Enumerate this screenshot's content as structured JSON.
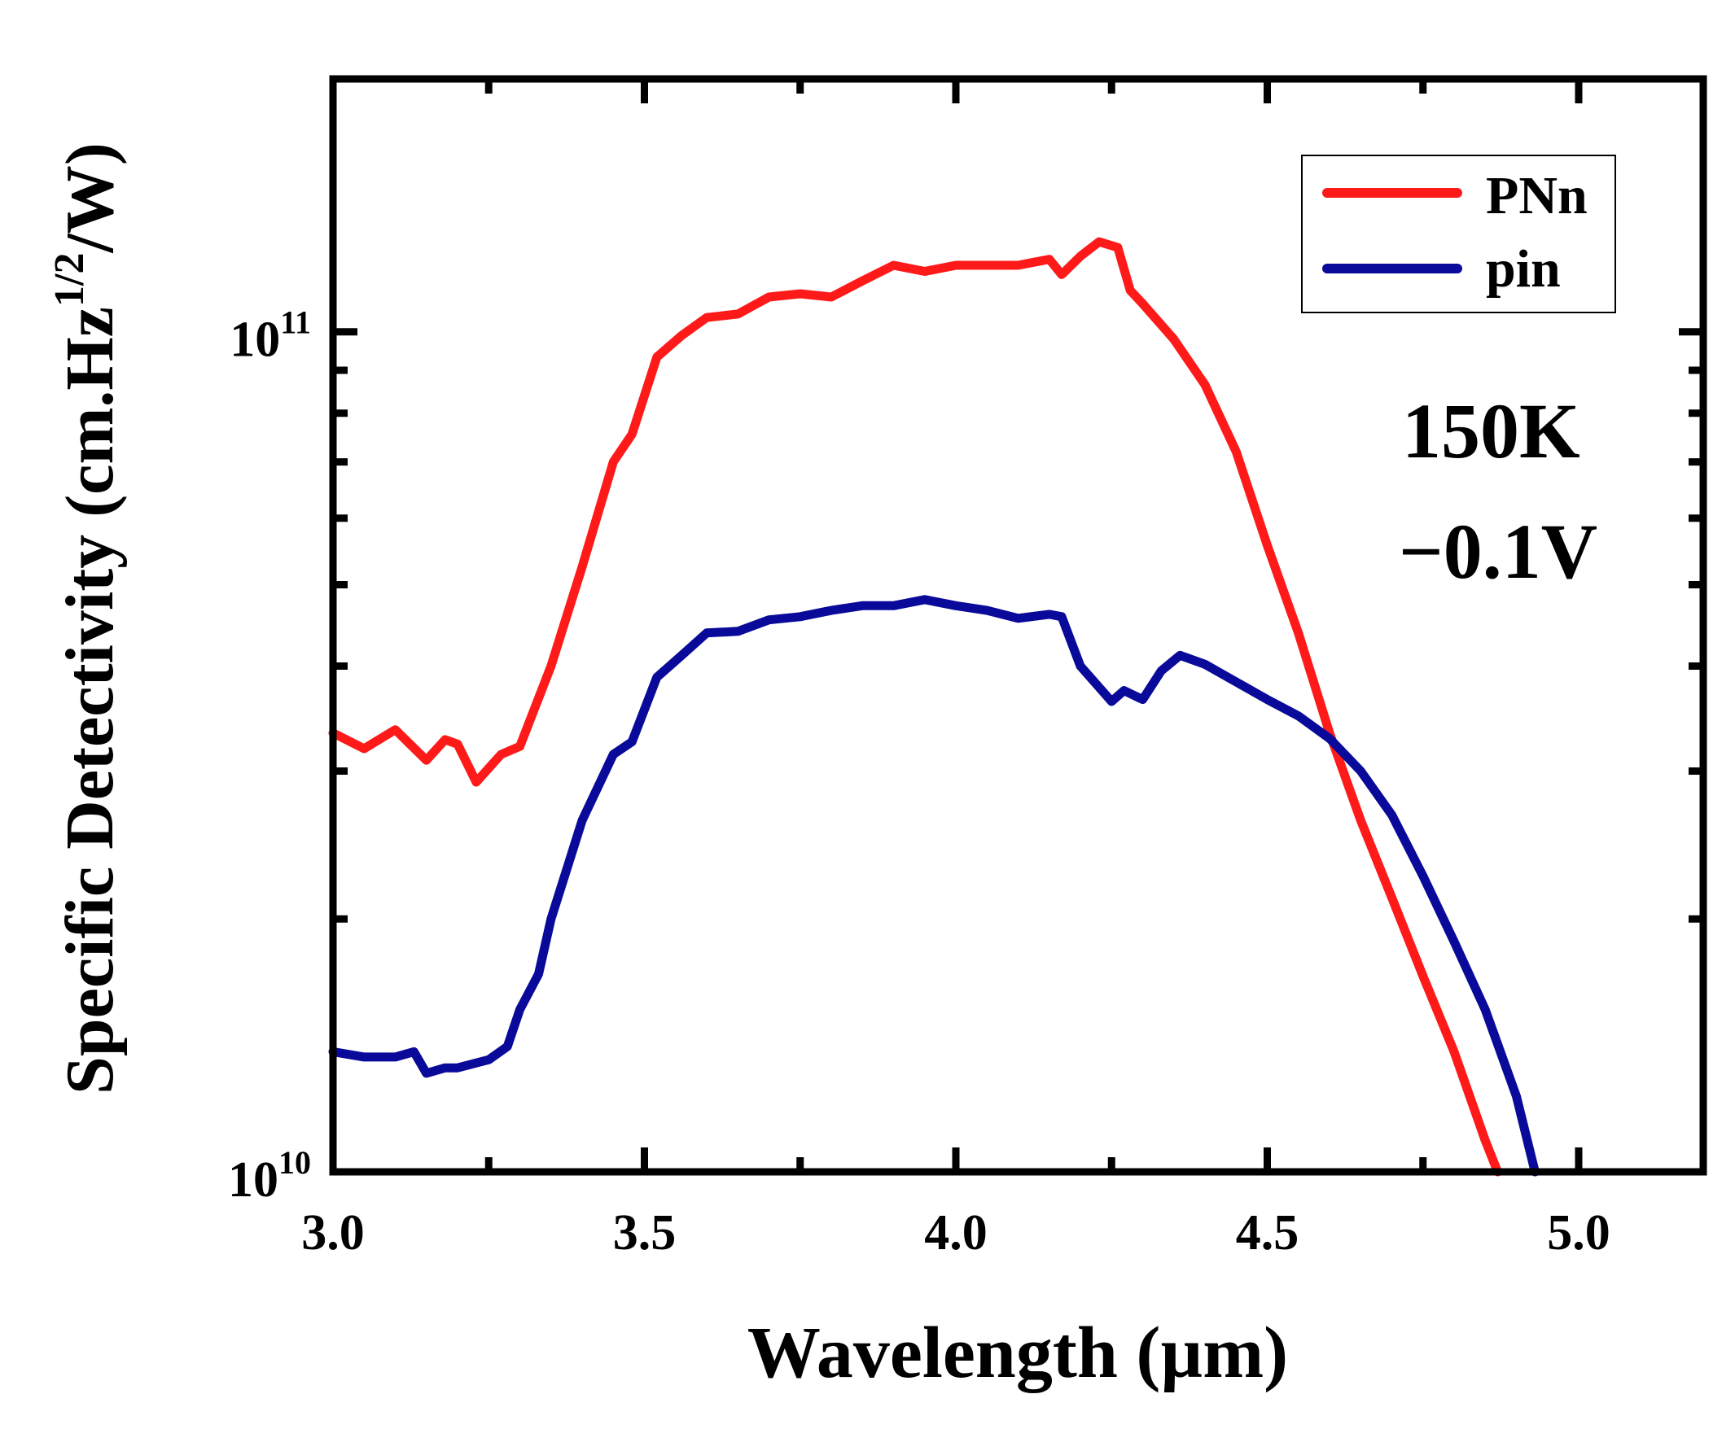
{
  "chart_data": {
    "type": "line",
    "title": "",
    "xlabel": "Wavelength (µm)",
    "ylabel_main": "Specific Detectivity (cm.Hz",
    "ylabel_sup": "1/2",
    "ylabel_tail": "/W)",
    "xlim": [
      3.0,
      5.2
    ],
    "ylim": [
      10000000000.0,
      200000000000.0
    ],
    "yscale": "log",
    "xticks": [
      3.0,
      3.5,
      4.0,
      4.5,
      5.0
    ],
    "xtick_labels": [
      "3.0",
      "3.5",
      "4.0",
      "4.5",
      "5.0"
    ],
    "yticks": [
      {
        "value": 10000000000.0,
        "base": "10",
        "exp": "10"
      },
      {
        "value": 100000000000.0,
        "base": "10",
        "exp": "11"
      }
    ],
    "legend_position": "top-right",
    "annotations": [
      "150K",
      "−0.1V"
    ],
    "series": [
      {
        "name": "PNn",
        "color": "#ff1a1a",
        "x": [
          3.0,
          3.05,
          3.1,
          3.15,
          3.18,
          3.2,
          3.23,
          3.27,
          3.3,
          3.35,
          3.4,
          3.45,
          3.48,
          3.52,
          3.56,
          3.6,
          3.65,
          3.7,
          3.75,
          3.8,
          3.85,
          3.9,
          3.95,
          4.0,
          4.05,
          4.1,
          4.15,
          4.17,
          4.2,
          4.23,
          4.26,
          4.28,
          4.3,
          4.35,
          4.4,
          4.45,
          4.5,
          4.55,
          4.6,
          4.65,
          4.7,
          4.75,
          4.8,
          4.85,
          4.87
        ],
        "y": [
          33300000000.0,
          31900000000.0,
          33600000000.0,
          30900000000.0,
          32700000000.0,
          32300000000.0,
          29100000000.0,
          31400000000.0,
          32100000000.0,
          40000000000.0,
          52500000000.0,
          70000000000.0,
          75500000000.0,
          93300000000.0,
          99000000000.0,
          104000000000.0,
          105000000000.0,
          110000000000.0,
          111000000000.0,
          110000000000.0,
          115000000000.0,
          120000000000.0,
          118000000000.0,
          120000000000.0,
          120000000000.0,
          120000000000.0,
          122000000000.0,
          117000000000.0,
          123000000000.0,
          128000000000.0,
          126000000000.0,
          112000000000.0,
          108000000000.0,
          98000000000.0,
          86500000000.0,
          72000000000.0,
          55700000000.0,
          43800000000.0,
          33300000000.0,
          26200000000.0,
          21200000000.0,
          17100000000.0,
          13900000000.0,
          10900000000.0,
          10000000000.0
        ]
      },
      {
        "name": "pin",
        "color": "#0a0a9a",
        "x": [
          3.0,
          3.05,
          3.1,
          3.13,
          3.15,
          3.18,
          3.2,
          3.25,
          3.28,
          3.3,
          3.33,
          3.35,
          3.4,
          3.45,
          3.48,
          3.52,
          3.56,
          3.6,
          3.65,
          3.7,
          3.75,
          3.8,
          3.85,
          3.9,
          3.95,
          4.0,
          4.05,
          4.1,
          4.15,
          4.17,
          4.2,
          4.25,
          4.27,
          4.3,
          4.33,
          4.36,
          4.4,
          4.45,
          4.5,
          4.55,
          4.6,
          4.65,
          4.7,
          4.75,
          4.8,
          4.85,
          4.9,
          4.93
        ],
        "y": [
          13900000000.0,
          13700000000.0,
          13700000000.0,
          13900000000.0,
          13100000000.0,
          13300000000.0,
          13300000000.0,
          13600000000.0,
          14100000000.0,
          15600000000.0,
          17200000000.0,
          20000000000.0,
          26200000000.0,
          31400000000.0,
          32500000000.0,
          38800000000.0,
          41200000000.0,
          43800000000.0,
          44000000000.0,
          45400000000.0,
          45800000000.0,
          46600000000.0,
          47200000000.0,
          47200000000.0,
          48000000000.0,
          47200000000.0,
          46600000000.0,
          45600000000.0,
          46100000000.0,
          45800000000.0,
          40000000000.0,
          36300000000.0,
          37400000000.0,
          36500000000.0,
          39500000000.0,
          41200000000.0,
          40200000000.0,
          38300000000.0,
          36500000000.0,
          34900000000.0,
          32800000000.0,
          30000000000.0,
          26600000000.0,
          22500000000.0,
          18800000000.0,
          15600000000.0,
          12300000000.0,
          10000000000.0
        ]
      }
    ]
  }
}
